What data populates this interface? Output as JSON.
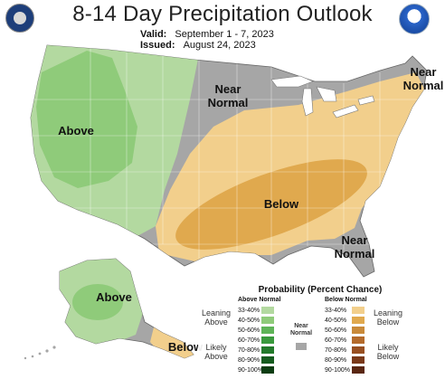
{
  "header": {
    "title": "8-14 Day Precipitation Outlook",
    "valid_label": "Valid:",
    "valid_value": "September 1 - 7, 2023",
    "issued_label": "Issued:",
    "issued_value": "August 24, 2023"
  },
  "map_labels": {
    "above_west": "Above",
    "near_normal_north": "Near\nNormal",
    "near_normal_northeast": "Near\nNormal",
    "below_central": "Below",
    "near_normal_southeast": "Near\nNormal",
    "above_alaska": "Above",
    "below_alaska": "Below"
  },
  "legend": {
    "title": "Probability (Percent Chance)",
    "above_header": "Above Normal",
    "below_header": "Below Normal",
    "above_levels": [
      "33-40%",
      "40-50%",
      "50-60%",
      "60-70%",
      "70-80%",
      "80-90%",
      "90-100%"
    ],
    "below_levels": [
      "33-40%",
      "40-50%",
      "50-60%",
      "60-70%",
      "70-80%",
      "80-90%",
      "90-100%"
    ],
    "above_colors": [
      "#b3d9a0",
      "#8fcb7a",
      "#5fb458",
      "#3a9a3d",
      "#237a2b",
      "#165c1f",
      "#0c3d12"
    ],
    "below_colors": [
      "#f2cf8c",
      "#e0a94e",
      "#c98a3a",
      "#b46b2c",
      "#985022",
      "#7a3a1a",
      "#5a2712"
    ],
    "near_normal": "Near\nNormal",
    "near_color": "#a6a6a6",
    "leaning_above": "Leaning\nAbove",
    "likely_above": "Likely\nAbove",
    "leaning_below": "Leaning\nBelow",
    "likely_below": "Likely\nBelow"
  }
}
